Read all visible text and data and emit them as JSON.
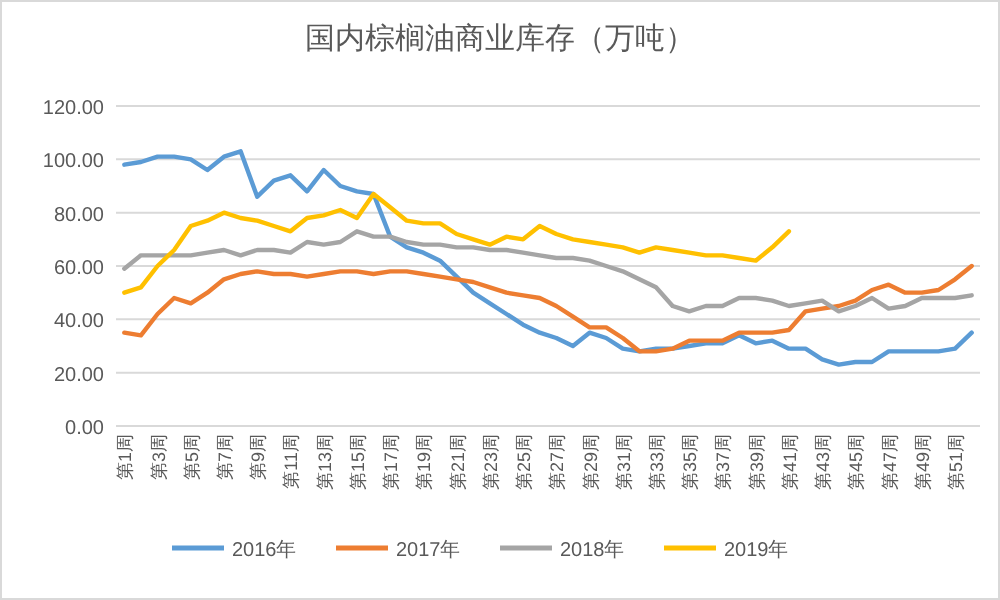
{
  "chart_data": {
    "type": "line",
    "title": "国内棕榈油商业库存（万吨）",
    "categories": [
      "第1周",
      null,
      "第3周",
      null,
      "第5周",
      null,
      "第7周",
      null,
      "第9周",
      null,
      "第11周",
      null,
      "第13周",
      null,
      "第15周",
      null,
      "第17周",
      null,
      "第19周",
      null,
      "第21周",
      null,
      "第23周",
      null,
      "第25周",
      null,
      "第27周",
      null,
      "第29周",
      null,
      "第31周",
      null,
      "第33周",
      null,
      "第35周",
      null,
      "第37周",
      null,
      "第39周",
      null,
      "第41周",
      null,
      "第43周",
      null,
      "第45周",
      null,
      "第47周",
      null,
      "第49周",
      null,
      "第51周",
      null
    ],
    "series": [
      {
        "name": "2016年",
        "color": "#5b9bd5",
        "values": [
          98,
          99,
          101,
          101,
          100,
          96,
          101,
          103,
          86,
          92,
          94,
          88,
          96,
          90,
          88,
          87,
          71,
          67,
          65,
          62,
          56,
          50,
          46,
          42,
          38,
          35,
          33,
          30,
          35,
          33,
          29,
          28,
          29,
          29,
          30,
          31,
          31,
          34,
          31,
          32,
          29,
          29,
          25,
          23,
          24,
          24,
          28,
          28,
          28,
          28,
          29,
          35
        ]
      },
      {
        "name": "2017年",
        "color": "#ed7d31",
        "values": [
          35,
          34,
          42,
          48,
          46,
          50,
          55,
          57,
          58,
          57,
          57,
          56,
          57,
          58,
          58,
          57,
          58,
          58,
          57,
          56,
          55,
          54,
          52,
          50,
          49,
          48,
          45,
          41,
          37,
          37,
          33,
          28,
          28,
          29,
          32,
          32,
          32,
          35,
          35,
          35,
          36,
          43,
          44,
          45,
          47,
          51,
          53,
          50,
          50,
          51,
          55,
          60
        ]
      },
      {
        "name": "2018年",
        "color": "#a5a5a5",
        "values": [
          59,
          64,
          64,
          64,
          64,
          65,
          66,
          64,
          66,
          66,
          65,
          69,
          68,
          69,
          73,
          71,
          71,
          69,
          68,
          68,
          67,
          67,
          66,
          66,
          65,
          64,
          63,
          63,
          62,
          60,
          58,
          55,
          52,
          45,
          43,
          45,
          45,
          48,
          48,
          47,
          45,
          46,
          47,
          43,
          45,
          48,
          44,
          45,
          48,
          48,
          48,
          49
        ]
      },
      {
        "name": "2019年",
        "color": "#ffc000",
        "values": [
          50,
          52,
          60,
          66,
          75,
          77,
          80,
          78,
          77,
          75,
          73,
          78,
          79,
          81,
          78,
          87,
          82,
          77,
          76,
          76,
          72,
          70,
          68,
          71,
          70,
          75,
          72,
          70,
          69,
          68,
          67,
          65,
          67,
          66,
          65,
          64,
          64,
          63,
          62,
          67,
          73,
          null,
          null,
          null,
          null,
          null,
          null,
          null,
          null,
          null,
          null,
          null
        ]
      }
    ],
    "ylim": [
      0,
      120
    ],
    "yticks": [
      {
        "value": 0,
        "label": "0.00"
      },
      {
        "value": 20,
        "label": "20.00"
      },
      {
        "value": 40,
        "label": "40.00"
      },
      {
        "value": 60,
        "label": "60.00"
      },
      {
        "value": 80,
        "label": "80.00"
      },
      {
        "value": 100,
        "label": "100.00"
      },
      {
        "value": 120,
        "label": "120.00"
      }
    ],
    "grid": "y",
    "legend": "bottom",
    "marker": "none",
    "line_style": "solid"
  }
}
